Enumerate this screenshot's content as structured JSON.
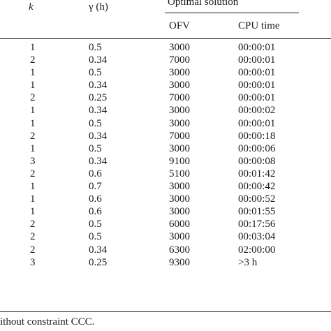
{
  "table": {
    "header": {
      "k": "k",
      "gamma": "γ (h)",
      "group": "Optimal solution",
      "ofv": "OFV",
      "cpu": "CPU time"
    },
    "rows": [
      {
        "k": "1",
        "gamma": "0.5",
        "ofv": "3000",
        "cpu": "00:00:01"
      },
      {
        "k": "2",
        "gamma": "0.34",
        "ofv": "7000",
        "cpu": "00:00:01"
      },
      {
        "k": "1",
        "gamma": "0.5",
        "ofv": "3000",
        "cpu": "00:00:01"
      },
      {
        "k": "1",
        "gamma": "0.34",
        "ofv": "3000",
        "cpu": "00:00:01"
      },
      {
        "k": "2",
        "gamma": "0.25",
        "ofv": "7000",
        "cpu": "00:00:01"
      },
      {
        "k": "1",
        "gamma": "0.34",
        "ofv": "3000",
        "cpu": "00:00:02"
      },
      {
        "k": "1",
        "gamma": "0.5",
        "ofv": "3000",
        "cpu": "00:00:01"
      },
      {
        "k": "2",
        "gamma": "0.34",
        "ofv": "7000",
        "cpu": "00:00:18"
      },
      {
        "k": "1",
        "gamma": "0.5",
        "ofv": "3000",
        "cpu": "00:00:06"
      },
      {
        "k": "3",
        "gamma": "0.34",
        "ofv": "9100",
        "cpu": "00:00:08"
      },
      {
        "k": "2",
        "gamma": "0.6",
        "ofv": "5100",
        "cpu": "00:01:42"
      },
      {
        "k": "1",
        "gamma": "0.7",
        "ofv": "3000",
        "cpu": "00:00:42"
      },
      {
        "k": "1",
        "gamma": "0.6",
        "ofv": "3000",
        "cpu": "00:00:52"
      },
      {
        "k": "1",
        "gamma": "0.6",
        "ofv": "3000",
        "cpu": "00:01:55"
      },
      {
        "k": "2",
        "gamma": "0.5",
        "ofv": "6000",
        "cpu": "00:17:56"
      },
      {
        "k": "2",
        "gamma": "0.5",
        "ofv": "3000",
        "cpu": "00:03:04"
      },
      {
        "k": "2",
        "gamma": "0.34",
        "ofv": "6300",
        "cpu": "02:00:00"
      },
      {
        "k": "3",
        "gamma": "0.25",
        "ofv": "9300",
        "cpu": ">3 h"
      }
    ],
    "footnote": "ithout constraint CCC."
  }
}
